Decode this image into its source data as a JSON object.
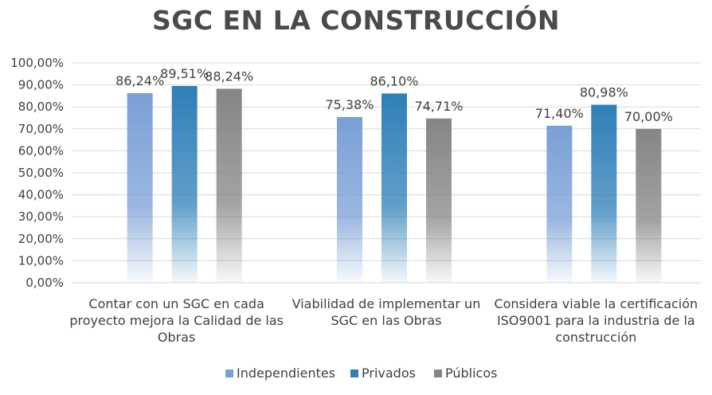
{
  "chart_data": {
    "type": "bar",
    "title": "SGC EN LA CONSTRUCCIÓN",
    "xlabel": "",
    "ylabel": "",
    "ylim": [
      0,
      100
    ],
    "yticks": [
      "0,00%",
      "10,00%",
      "20,00%",
      "30,00%",
      "40,00%",
      "50,00%",
      "60,00%",
      "70,00%",
      "80,00%",
      "90,00%",
      "100,00%"
    ],
    "categories": [
      [
        "Contar con un SGC en cada",
        "proyecto mejora la Calidad de las",
        "Obras"
      ],
      [
        "Viabilidad de implementar un",
        "SGC  en las Obras"
      ],
      [
        "Considera viable la certificación",
        "ISO9001 para la industria de la",
        "construcción"
      ]
    ],
    "series": [
      {
        "name": "Independientes",
        "color": "#7a9fd6",
        "values": [
          86.24,
          75.38,
          71.4
        ],
        "labels": [
          "86,24%",
          "75,38%",
          "71,40%"
        ]
      },
      {
        "name": "Privados",
        "color": "#2e7fb8",
        "values": [
          89.51,
          86.1,
          80.98
        ],
        "labels": [
          "89,51%",
          "86,10%",
          "80,98%"
        ]
      },
      {
        "name": "Públicos",
        "color": "#858585",
        "values": [
          88.24,
          74.71,
          70.0
        ],
        "labels": [
          "88,24%",
          "74,71%",
          "70,00%"
        ]
      }
    ],
    "legend_position": "bottom",
    "grid": true
  }
}
